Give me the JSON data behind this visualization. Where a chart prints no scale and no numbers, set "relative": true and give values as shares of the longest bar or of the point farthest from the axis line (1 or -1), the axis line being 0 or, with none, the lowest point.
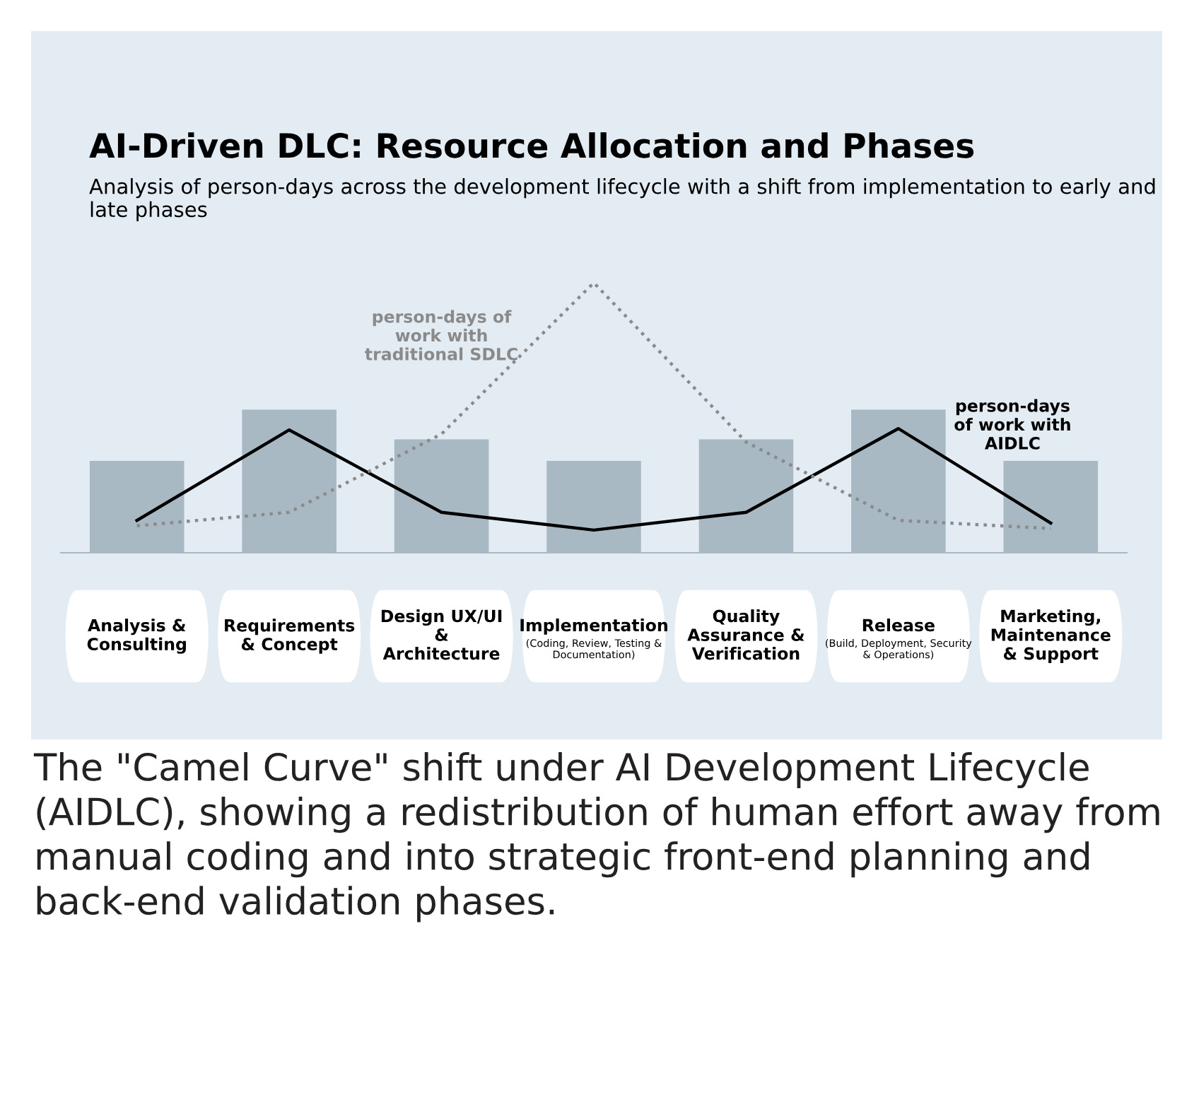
{
  "chart_data": {
    "type": "bar",
    "relative": true,
    "title": "AI-Driven DLC: Resource Allocation and Phases",
    "subtitle": "Analysis of person-days across the development lifecycle with a shift from implementation to early and late phases",
    "categories": [
      "Analysis &\nConsulting",
      "Requirements\n& Concept",
      "Design UX/UI\n&\nArchitecture",
      "Implementation\n(Coding, Review, Testing &\nDocumentation)",
      "Quality\nAssurance &\nVerification",
      "Release\n(Build, Deployment, Security\n& Operations)",
      "Marketing,\nMaintenance\n& Support"
    ],
    "series": [
      {
        "color": "#a8b9c4",
        "values": [
          0.34,
          0.53,
          0.42,
          0.34,
          0.42,
          0.53,
          0.34
        ]
      },
      {
        "type": "line",
        "name": "person-days\nof work with\nAIDLC",
        "color": "#000000",
        "line_style": "solid",
        "values": [
          0.12,
          0.455,
          0.15,
          0.084,
          0.15,
          0.46,
          0.11
        ]
      },
      {
        "type": "line",
        "name": "person-days of\nwork with\ntraditional SDLC",
        "color": "#8a8a8a",
        "line_style": "dotted",
        "values": [
          0.1,
          0.15,
          0.44,
          1.0,
          0.41,
          0.12,
          0.09
        ]
      }
    ],
    "annotations": [
      "The \"Camel Curve\" shift under AI Development Lifecycle (AIDLC), showing a redistribution of human effort away from manual coding and into strategic front-end planning and back-end validation phases."
    ],
    "grid": false,
    "legend": false
  }
}
